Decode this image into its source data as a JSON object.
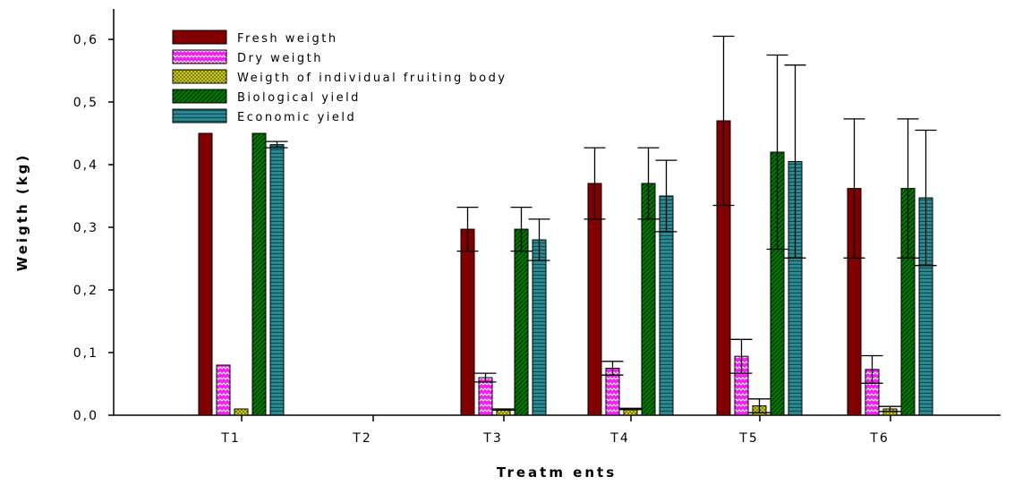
{
  "chart_data": {
    "type": "bar",
    "xlabel": "Treatm ents",
    "ylabel": "Weigth (kg)",
    "ylim": [
      0,
      0.65
    ],
    "yticks": [
      "0,0",
      "0,1",
      "0,2",
      "0,3",
      "0,4",
      "0,5",
      "0,6"
    ],
    "grid": false,
    "legend_position": "top-left",
    "categories": [
      "T1",
      "T2",
      "T3",
      "T4",
      "T5",
      "T6"
    ],
    "series": [
      {
        "name": "Fresh weigth",
        "color": "#800000",
        "pattern": "solid",
        "values": [
          0.45,
          null,
          0.297,
          0.37,
          0.47,
          0.362
        ],
        "errors": [
          0,
          null,
          0.035,
          0.057,
          0.135,
          0.111
        ]
      },
      {
        "name": "Dry weigth",
        "color": "#ee22ee",
        "pattern": "wave",
        "values": [
          0.08,
          null,
          0.06,
          0.075,
          0.094,
          0.073
        ],
        "errors": [
          0,
          null,
          0.007,
          0.011,
          0.027,
          0.022
        ]
      },
      {
        "name": "Weigth of individual fruiting body",
        "color": "#c8c800",
        "pattern": "crosshatch",
        "values": [
          0.01,
          null,
          0.009,
          0.01,
          0.015,
          0.01
        ],
        "errors": [
          0,
          null,
          0.001,
          0.001,
          0.011,
          0.004
        ]
      },
      {
        "name": "Biological yield",
        "color": "#008000",
        "pattern": "diagonal",
        "values": [
          0.45,
          null,
          0.297,
          0.37,
          0.42,
          0.362
        ],
        "errors": [
          0,
          null,
          0.035,
          0.057,
          0.155,
          0.111
        ]
      },
      {
        "name": "Economic yield",
        "color": "#2a8a90",
        "pattern": "horizontal",
        "values": [
          0.432,
          null,
          0.28,
          0.35,
          0.405,
          0.347
        ],
        "errors": [
          0.005,
          null,
          0.033,
          0.057,
          0.154,
          0.108
        ]
      }
    ]
  }
}
